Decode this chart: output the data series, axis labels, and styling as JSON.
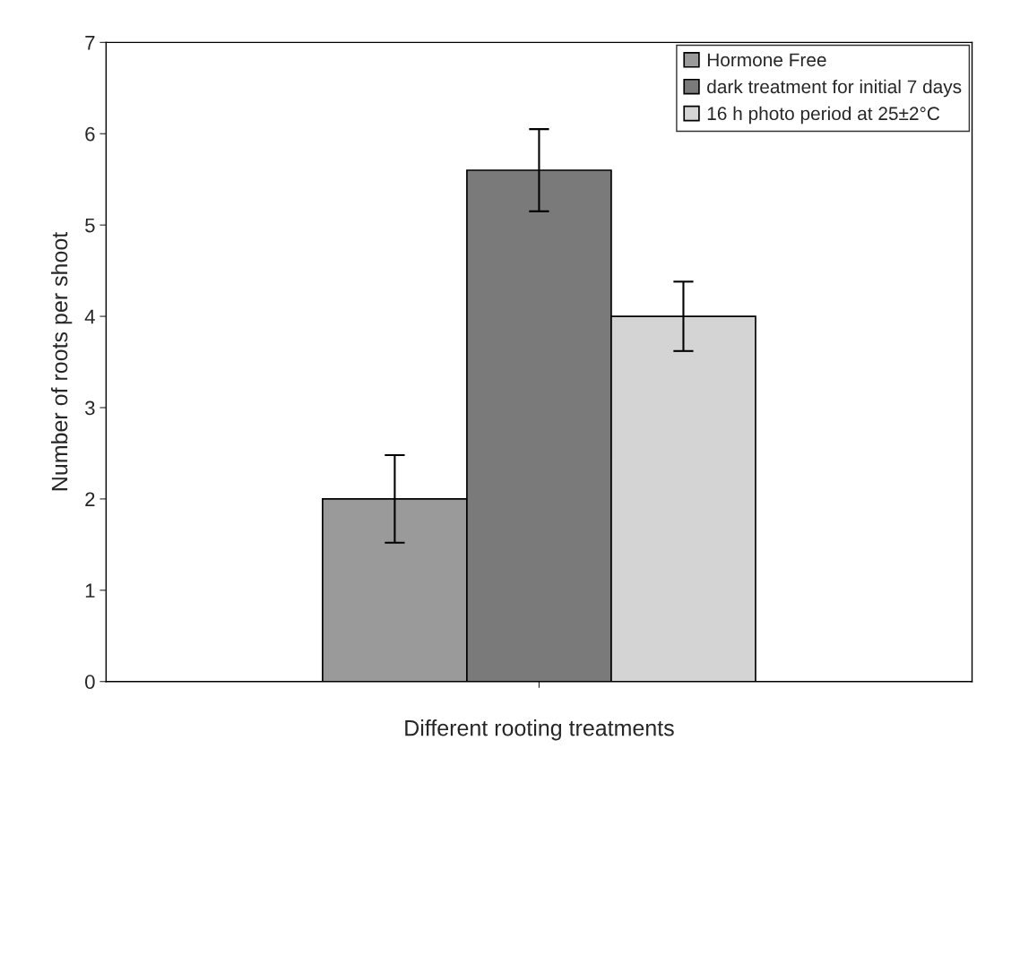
{
  "chart_data": {
    "type": "bar",
    "xlabel": "Different rooting treatments",
    "ylabel": "Number of roots per shoot",
    "categories": [
      null
    ],
    "series": [
      {
        "name": "Hormone Free",
        "color": "#9a9a9a",
        "values": [
          2.0
        ],
        "errors": [
          0.48
        ]
      },
      {
        "name": "dark treatment for initial 7 days",
        "color": "#7a7a7a",
        "values": [
          5.6
        ],
        "errors": [
          0.45
        ]
      },
      {
        "name": "16 h photo period at 25±2°C",
        "color": "#d4d4d4",
        "values": [
          4.0
        ],
        "errors": [
          0.38
        ]
      }
    ],
    "ylim": [
      0,
      7
    ],
    "yticks": [
      0,
      1,
      2,
      3,
      4,
      5,
      6,
      7
    ],
    "grid": false,
    "legend": "top right"
  }
}
